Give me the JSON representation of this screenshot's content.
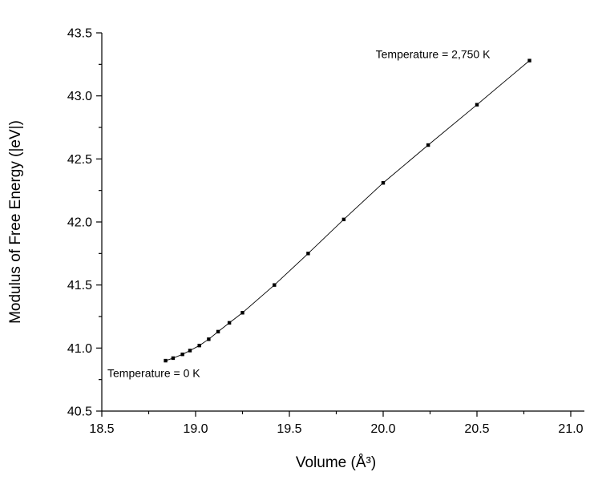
{
  "figure": {
    "background": "#ffffff"
  },
  "chart_data": {
    "type": "line",
    "title": "",
    "xlabel": "Volume (Å³)",
    "ylabel": "Modulus of Free Energy (|eV|)",
    "xlim": [
      18.5,
      21.0
    ],
    "ylim": [
      40.5,
      43.5
    ],
    "x_ticks": [
      18.5,
      19.0,
      19.5,
      20.0,
      20.5,
      21.0
    ],
    "x_tick_labels": [
      "18.5",
      "19.0",
      "19.5",
      "20.0",
      "20.5",
      "21.0"
    ],
    "y_ticks": [
      40.5,
      41.0,
      41.5,
      42.0,
      42.5,
      43.0,
      43.5
    ],
    "y_tick_labels": [
      "40.5",
      "41.0",
      "41.5",
      "42.0",
      "42.5",
      "43.0",
      "43.5"
    ],
    "x_minor_ticks": [
      18.75,
      19.25,
      19.75,
      20.25,
      20.75
    ],
    "y_minor_ticks": [
      40.75,
      41.25,
      41.75,
      42.25,
      42.75,
      43.25
    ],
    "grid": false,
    "legend": "none",
    "line_color": "#000000",
    "marker": {
      "shape": "square",
      "color": "#000000",
      "size": 4.4
    },
    "series": [
      {
        "name": "modulus-of-free-energy-vs-volume",
        "x": [
          18.84,
          18.88,
          18.93,
          18.97,
          19.02,
          19.07,
          19.12,
          19.18,
          19.25,
          19.42,
          19.6,
          19.79,
          20.0,
          20.24,
          20.5,
          20.78
        ],
        "y": [
          40.9,
          40.92,
          40.95,
          40.98,
          41.02,
          41.07,
          41.13,
          41.2,
          41.28,
          41.5,
          41.75,
          42.02,
          42.31,
          42.61,
          42.93,
          43.28
        ]
      }
    ],
    "annotations": [
      {
        "text": "Temperature = 2,750 K",
        "x": 19.96,
        "y": 43.3,
        "anchor": "start"
      },
      {
        "text": "Temperature = 0 K",
        "x": 18.53,
        "y": 40.77,
        "anchor": "start"
      }
    ]
  }
}
